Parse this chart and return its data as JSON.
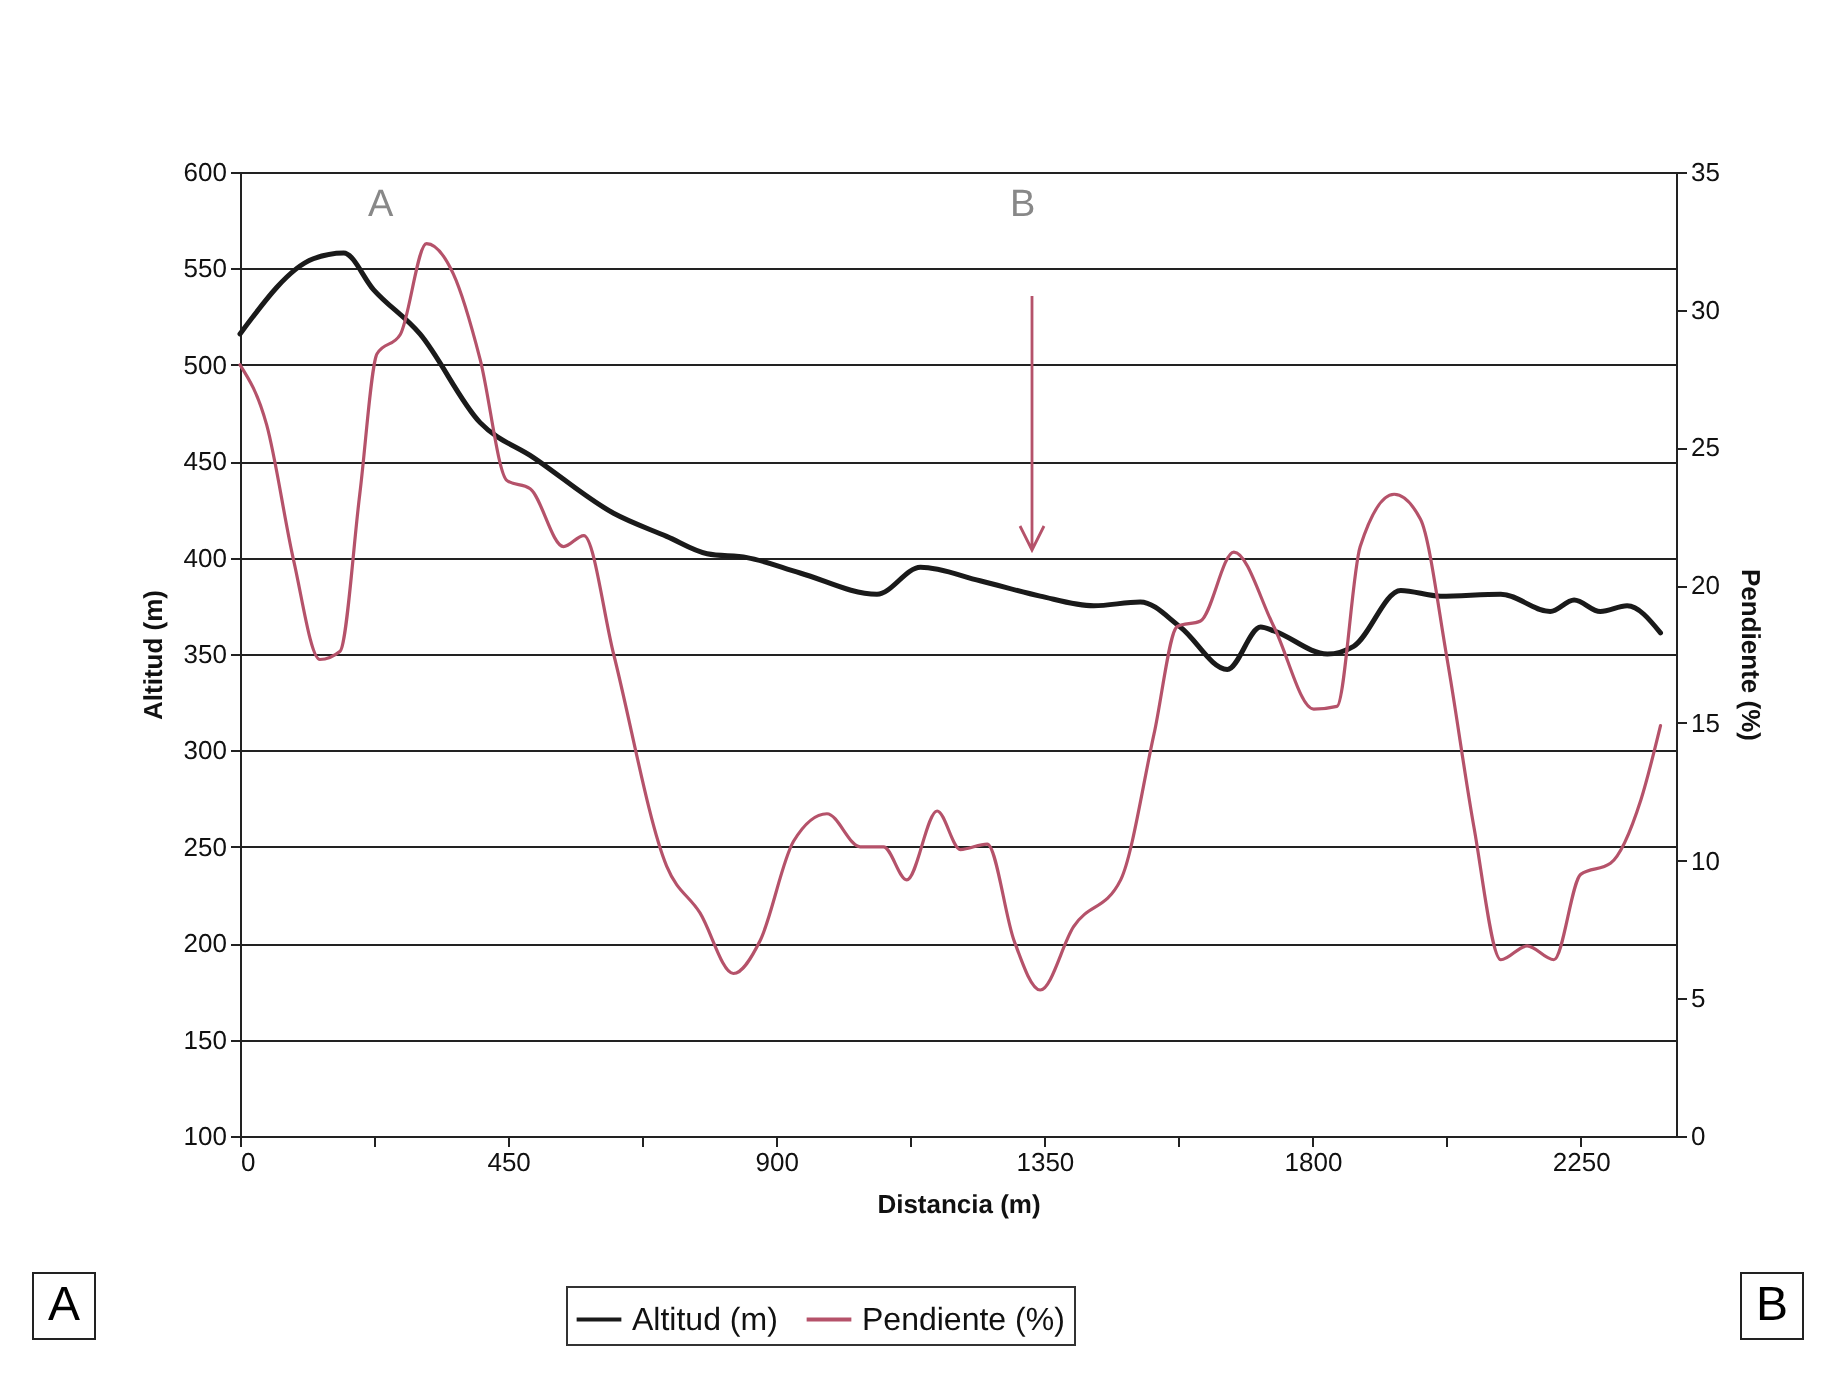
{
  "chart_data": {
    "type": "line",
    "xlabel": "Distancia (m)",
    "ylabel": "Altitud (m)",
    "y2label": "Pendiente (%)",
    "xlim": [
      0,
      2410
    ],
    "xticks": [
      0,
      {
        "value": 225,
        "label": null
      },
      450,
      {
        "value": 675,
        "label": null
      },
      900,
      {
        "value": 1125,
        "label": null
      },
      1350,
      {
        "value": 1575,
        "label": null
      },
      1800,
      {
        "value": 2025,
        "label": null
      },
      2250
    ],
    "ylim": [
      100,
      600
    ],
    "yticks": [
      100,
      150,
      200,
      250,
      300,
      350,
      400,
      450,
      500,
      550,
      600
    ],
    "y2lim": [
      0,
      35
    ],
    "y2ticks": [
      0,
      5,
      10,
      15,
      20,
      25,
      30,
      35
    ],
    "grid": "y",
    "legend": "bottom",
    "marker": "none",
    "line_style": "solid",
    "series": [
      {
        "name": "Altitud (m)",
        "color": "#1a1a1a",
        "x": [
          0,
          123,
          174,
          224,
          302,
          403,
          492,
          627,
          716,
          784,
          851,
          940,
          1069,
          1142,
          1242,
          1343,
          1433,
          1511,
          1578,
          1657,
          1713,
          1735,
          1825,
          1869,
          1948,
          2015,
          2116,
          2199,
          2239,
          2283,
          2328,
          2384
        ],
        "values": [
          516,
          555,
          558,
          539,
          516,
          470,
          452,
          423,
          411,
          402,
          400,
          392,
          381,
          395,
          388,
          380,
          375,
          377,
          364,
          342,
          364,
          362,
          350,
          354,
          383,
          380,
          381,
          372,
          378,
          372,
          375,
          361
        ]
      },
      {
        "name": "Pendiente (%)",
        "color": "#b5526a",
        "axis": "y2",
        "x": [
          0,
          45,
          90,
          134,
          168,
          201,
          230,
          269,
          313,
          358,
          403,
          448,
          487,
          543,
          577,
          627,
          716,
          772,
          828,
          873,
          929,
          985,
          1041,
          1080,
          1119,
          1170,
          1209,
          1254,
          1299,
          1343,
          1399,
          1478,
          1534,
          1573,
          1612,
          1668,
          1735,
          1802,
          1841,
          1880,
          1937,
          1981,
          2026,
          2071,
          2116,
          2160,
          2205,
          2250,
          2300,
          2351,
          2384
        ],
        "values": [
          28.0,
          25.8,
          20.9,
          17.3,
          17.6,
          23.3,
          28.4,
          29.1,
          32.4,
          31.3,
          28.2,
          23.8,
          23.5,
          21.4,
          21.8,
          17.5,
          9.8,
          8.1,
          5.9,
          7.1,
          10.7,
          11.7,
          10.5,
          10.5,
          9.3,
          11.8,
          10.4,
          10.6,
          7.1,
          5.3,
          7.6,
          9.3,
          14.6,
          18.5,
          18.7,
          21.2,
          18.5,
          15.5,
          15.6,
          21.4,
          23.3,
          22.4,
          17.3,
          11.2,
          6.4,
          6.9,
          6.4,
          9.5,
          9.9,
          12.2,
          14.9
        ]
      }
    ],
    "annotations": [
      "A",
      "B",
      "A",
      "B"
    ]
  }
}
